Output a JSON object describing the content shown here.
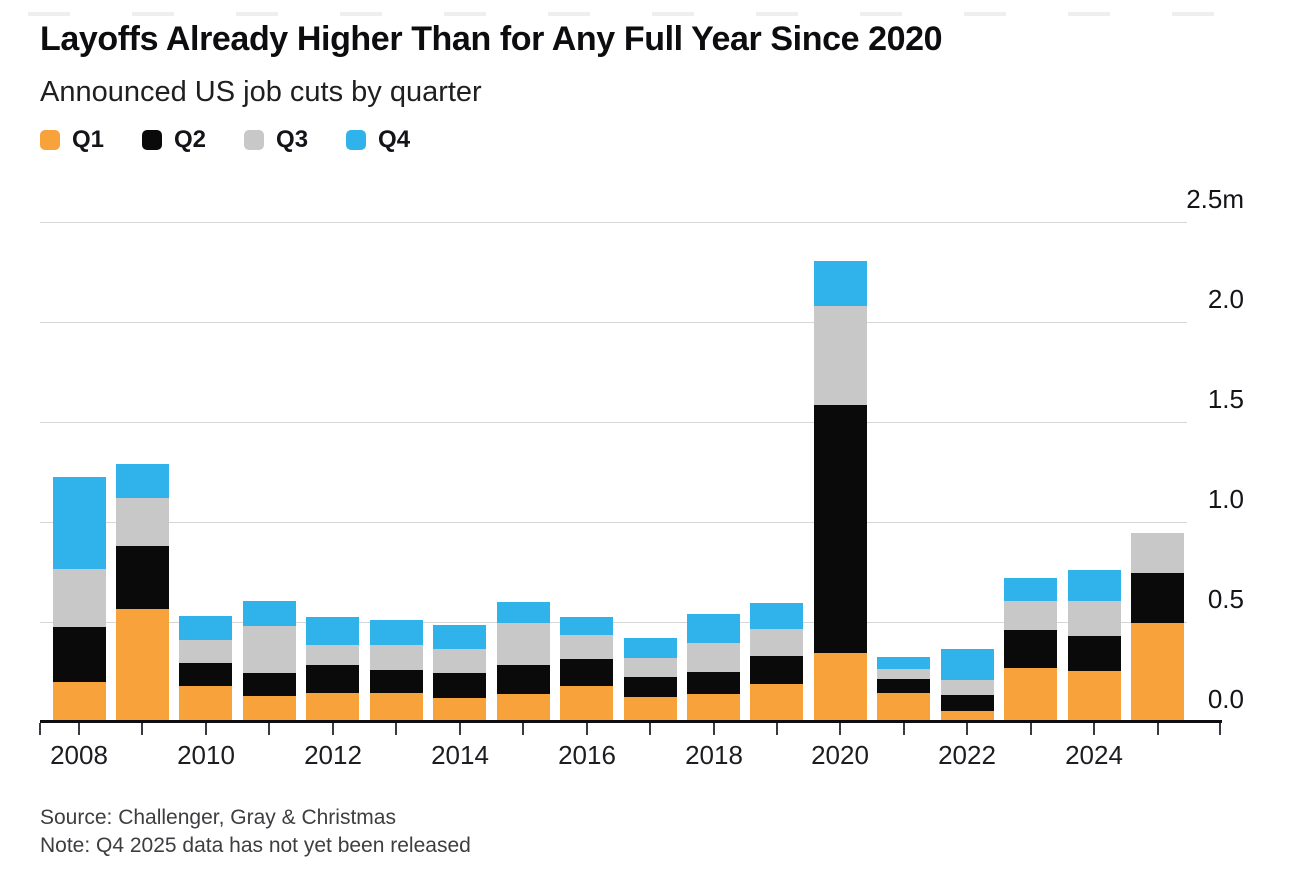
{
  "chart_data": {
    "type": "bar",
    "stacked": true,
    "title": "Layoffs Already Higher Than for Any Full Year Since 2020",
    "subtitle": "Announced US job cuts by quarter",
    "unit": "millions of announced job cuts",
    "legend_position": "top-left",
    "grid": "horizontal",
    "legend": [
      {
        "label": "Q1",
        "color": "#F8A23C"
      },
      {
        "label": "Q2",
        "color": "#0A0A0A"
      },
      {
        "label": "Q3",
        "color": "#C8C8C8"
      },
      {
        "label": "Q4",
        "color": "#2FB3EA"
      }
    ],
    "categories": [
      "2008",
      "2009",
      "2010",
      "2011",
      "2012",
      "2013",
      "2014",
      "2015",
      "2016",
      "2017",
      "2018",
      "2019",
      "2020",
      "2021",
      "2022",
      "2023",
      "2024",
      "2025"
    ],
    "series": [
      {
        "name": "Q1",
        "color": "#F8A23C",
        "values": [
          0.201,
          0.563,
          0.181,
          0.131,
          0.143,
          0.145,
          0.121,
          0.14,
          0.181,
          0.126,
          0.14,
          0.19,
          0.347,
          0.145,
          0.056,
          0.27,
          0.257,
          0.497
        ]
      },
      {
        "name": "Q2",
        "color": "#0A0A0A",
        "values": [
          0.275,
          0.318,
          0.116,
          0.115,
          0.14,
          0.114,
          0.125,
          0.147,
          0.133,
          0.101,
          0.112,
          0.141,
          1.238,
          0.069,
          0.078,
          0.188,
          0.175,
          0.247
        ]
      },
      {
        "name": "Q3",
        "color": "#C8C8C8",
        "values": [
          0.287,
          0.24,
          0.114,
          0.233,
          0.103,
          0.128,
          0.117,
          0.206,
          0.122,
          0.094,
          0.141,
          0.134,
          0.497,
          0.053,
          0.076,
          0.146,
          0.174,
          0.202
        ]
      },
      {
        "name": "Q4",
        "color": "#2FB3EA",
        "values": [
          0.461,
          0.167,
          0.119,
          0.127,
          0.137,
          0.122,
          0.12,
          0.105,
          0.091,
          0.097,
          0.145,
          0.128,
          0.222,
          0.056,
          0.154,
          0.117,
          0.155,
          0
        ]
      }
    ],
    "y_axis": {
      "side": "right",
      "ylim": [
        0,
        2.5
      ],
      "ticks": [
        {
          "label": "2.5m",
          "value": 2.5
        },
        {
          "label": "2.0",
          "value": 2.0
        },
        {
          "label": "1.5",
          "value": 1.5
        },
        {
          "label": "1.0",
          "value": 1.0
        },
        {
          "label": "0.5",
          "value": 0.5
        },
        {
          "label": "0.0",
          "value": 0.0
        }
      ]
    },
    "x_axis": {
      "labels": [
        "2008",
        "2010",
        "2012",
        "2014",
        "2016",
        "2018",
        "2020",
        "2022",
        "2024"
      ],
      "tick_every_bar": true
    },
    "source": "Source: Challenger, Gray & Christmas",
    "note": "Note: Q4 2025 data has not yet been released"
  }
}
